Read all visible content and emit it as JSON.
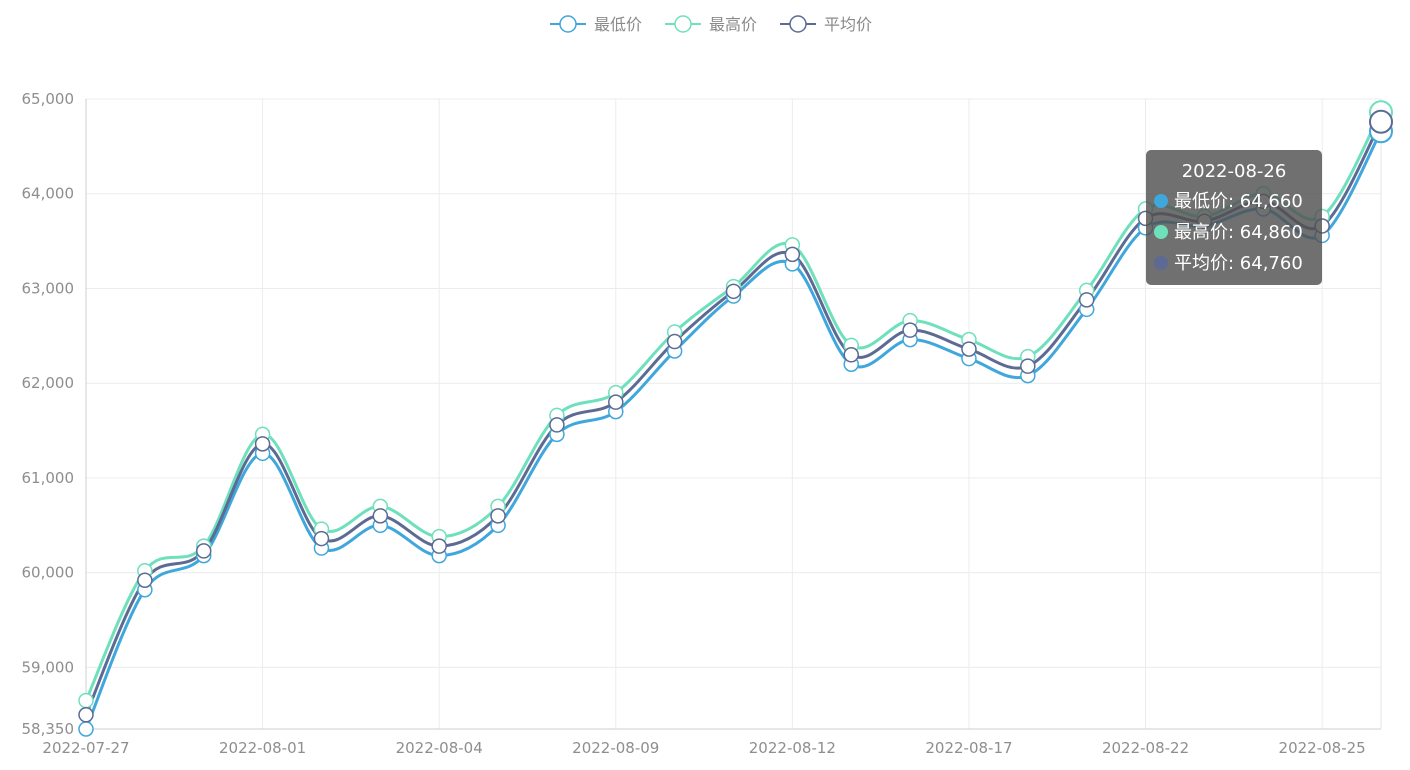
{
  "chart_data": {
    "type": "line",
    "smooth": true,
    "x": [
      "2022-07-27",
      "2022-07-28",
      "2022-07-29",
      "2022-08-01",
      "2022-08-02",
      "2022-08-03",
      "2022-08-04",
      "2022-08-05",
      "2022-08-08",
      "2022-08-09",
      "2022-08-10",
      "2022-08-11",
      "2022-08-12",
      "2022-08-15",
      "2022-08-16",
      "2022-08-17",
      "2022-08-18",
      "2022-08-19",
      "2022-08-22",
      "2022-08-23",
      "2022-08-24",
      "2022-08-25",
      "2022-08-26"
    ],
    "x_tick_labels": [
      "2022-07-27",
      "2022-08-01",
      "2022-08-04",
      "2022-08-09",
      "2022-08-12",
      "2022-08-17",
      "2022-08-22",
      "2022-08-25"
    ],
    "series": [
      {
        "name": "最低价",
        "color": "#3fa7dc",
        "values": [
          58350,
          59820,
          60180,
          61260,
          60260,
          60500,
          60180,
          60500,
          61460,
          61700,
          62340,
          62920,
          63260,
          62200,
          62460,
          62260,
          62080,
          62780,
          63640,
          63660,
          63840,
          63560,
          64660
        ]
      },
      {
        "name": "最高价",
        "color": "#6ee0bc",
        "values": [
          58650,
          60020,
          60280,
          61460,
          60460,
          60700,
          60380,
          60700,
          61660,
          61900,
          62540,
          63020,
          63460,
          62400,
          62660,
          62460,
          62280,
          62980,
          63840,
          63760,
          64000,
          63760,
          64860
        ]
      },
      {
        "name": "平均价",
        "color": "#5c6a94",
        "values": [
          58500,
          59920,
          60230,
          61360,
          60360,
          60600,
          60280,
          60600,
          61560,
          61800,
          62440,
          62970,
          63360,
          62300,
          62560,
          62360,
          62180,
          62880,
          63740,
          63710,
          63920,
          63660,
          64760
        ]
      }
    ],
    "y_ticks": [
      58350,
      59000,
      60000,
      61000,
      62000,
      63000,
      64000,
      65000
    ],
    "y_tick_labels": [
      "58,350",
      "59,000",
      "60,000",
      "61,000",
      "62,000",
      "63,000",
      "64,000",
      "65,000"
    ],
    "ylim": [
      58350,
      65000
    ],
    "grid": true,
    "legend": "top-center",
    "title": "",
    "xlabel": "",
    "ylabel": ""
  },
  "tooltip": {
    "title": "2022-08-26",
    "rows": [
      {
        "label": "最低价: 64,660",
        "color": "#3fa7dc"
      },
      {
        "label": "最高价: 64,860",
        "color": "#6ee0bc"
      },
      {
        "label": "平均价: 64,760",
        "color": "#5c6a94"
      }
    ]
  }
}
